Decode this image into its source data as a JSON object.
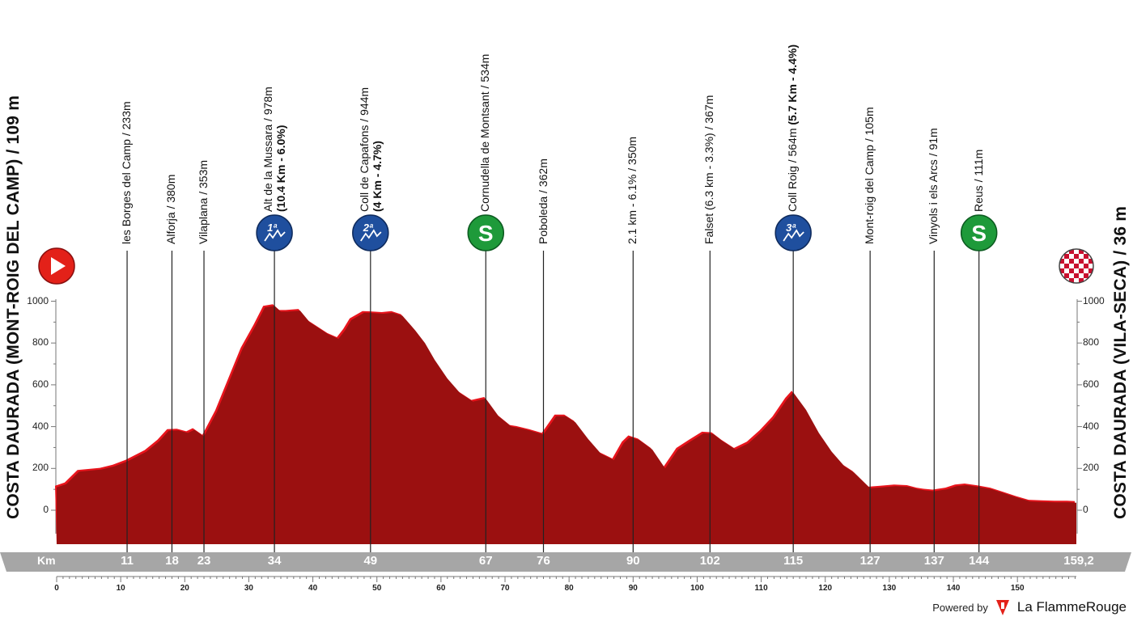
{
  "chart_data": {
    "type": "area",
    "start_title": "COSTA DAURADA (MONT-ROIG DEL CAMP) / 109 m",
    "finish_title": "COSTA DAURADA (VILA-SECA) / 36 m",
    "x_axis_label": "Km",
    "total_km_label": "159,2",
    "total_km": 159.2,
    "xlim": [
      0,
      159.2
    ],
    "ylim": [
      -160,
      1150
    ],
    "y_ticks": [
      0,
      200,
      400,
      600,
      800,
      1000
    ],
    "y_tick_labels": [
      "0",
      "200",
      "400",
      "600",
      "800",
      "1000"
    ],
    "x_ticks": [
      0,
      10,
      20,
      30,
      40,
      50,
      60,
      70,
      80,
      90,
      100,
      110,
      120,
      130,
      140,
      150
    ],
    "x_tick_labels": [
      "0",
      "10",
      "20",
      "30",
      "40",
      "50",
      "60",
      "70",
      "80",
      "90",
      "100",
      "110",
      "120",
      "130",
      "140",
      "150"
    ],
    "profile": {
      "x": [
        0,
        1.5,
        3.5,
        7,
        9,
        11,
        14,
        16,
        17.5,
        19,
        20.5,
        21.5,
        23,
        25,
        27,
        29,
        31,
        32.5,
        34,
        35,
        36,
        38,
        39.5,
        40.5,
        42.5,
        44,
        45,
        46,
        48,
        49,
        51,
        52.5,
        54,
        56,
        57.5,
        59,
        61,
        63,
        65,
        67,
        69,
        71,
        72,
        74,
        76,
        78,
        79.5,
        81,
        83,
        85,
        87,
        88.5,
        89.5,
        91,
        93,
        95,
        97,
        99,
        101,
        102.5,
        104,
        106,
        108,
        110,
        112,
        114,
        115,
        117,
        119,
        121,
        123,
        124.5,
        127,
        129,
        131,
        133,
        134.5,
        135.5,
        137,
        139,
        140.5,
        142,
        144,
        146,
        148,
        150,
        152,
        154,
        156,
        158,
        159.2
      ],
      "elevation": [
        109,
        125,
        185,
        195,
        210,
        233,
        280,
        330,
        380,
        382,
        370,
        385,
        353,
        470,
        620,
        770,
        880,
        970,
        978,
        950,
        950,
        955,
        900,
        880,
        840,
        820,
        860,
        910,
        945,
        944,
        940,
        945,
        930,
        860,
        800,
        720,
        630,
        560,
        520,
        534,
        450,
        400,
        395,
        380,
        362,
        450,
        450,
        420,
        340,
        270,
        240,
        320,
        350,
        335,
        290,
        200,
        290,
        330,
        368,
        365,
        330,
        290,
        320,
        375,
        440,
        530,
        564,
        480,
        370,
        280,
        210,
        180,
        105,
        110,
        115,
        112,
        100,
        95,
        91,
        100,
        115,
        120,
        111,
        100,
        80,
        60,
        42,
        40,
        38,
        38,
        36
      ]
    },
    "waypoints": [
      {
        "km": 11,
        "km_label": "11",
        "name": "les Borges del Camp / 233m",
        "bold": "",
        "marker": ""
      },
      {
        "km": 18,
        "km_label": "18",
        "name": "Alforja / 380m",
        "bold": "",
        "marker": ""
      },
      {
        "km": 23,
        "km_label": "23",
        "name": "Vilaplana / 353m",
        "bold": "",
        "marker": ""
      },
      {
        "km": 34,
        "km_label": "34",
        "name": "Alt de la Mussara / 978m",
        "bold": "(10.4 Km - 6.0%)",
        "marker": "kom",
        "category": "1ª"
      },
      {
        "km": 49,
        "km_label": "49",
        "name": "Coll de Capafons / 944m",
        "bold": "(4 Km - 4.7%)",
        "marker": "kom",
        "category": "2ª"
      },
      {
        "km": 67,
        "km_label": "67",
        "name": "Cornudella de Montsant / 534m",
        "bold": "",
        "marker": "sprint",
        "category": "S"
      },
      {
        "km": 76,
        "km_label": "76",
        "name": "Poboleda / 362m",
        "bold": "",
        "marker": ""
      },
      {
        "km": 90,
        "km_label": "90",
        "name": "2.1 km - 6.1% / 350m",
        "bold": "",
        "marker": ""
      },
      {
        "km": 102,
        "km_label": "102",
        "name": "Falset (6.3 km - 3.3%) / 367m",
        "bold": "",
        "marker": ""
      },
      {
        "km": 115,
        "km_label": "115",
        "name": "Coll Roig / 564m ",
        "bold": "(5.7 Km - 4.4%)",
        "marker": "kom",
        "category": "3ª"
      },
      {
        "km": 127,
        "km_label": "127",
        "name": "Mont-roig del Camp / 105m",
        "bold": "",
        "marker": ""
      },
      {
        "km": 137,
        "km_label": "137",
        "name": "Vinyols i els Arcs / 91m",
        "bold": "",
        "marker": ""
      },
      {
        "km": 144,
        "km_label": "144",
        "name": "Reus / 111m",
        "bold": "",
        "marker": "sprint",
        "category": "S"
      }
    ],
    "colors": {
      "profile_fill": "#9b1010",
      "profile_highlight": "#e8141c",
      "km_bar": "#a6a6a6",
      "kom_badge": "#1f4f9e",
      "sprint_badge": "#1e9a3a",
      "start_badge": "#e32119",
      "finish_checker": "#c8102e",
      "waypoint_line": "#222222"
    }
  },
  "footer": {
    "powered_by": "Powered by",
    "brand": "La FlammeRouge",
    "brand_logo_icon": "flamme-rouge-logo-icon"
  }
}
